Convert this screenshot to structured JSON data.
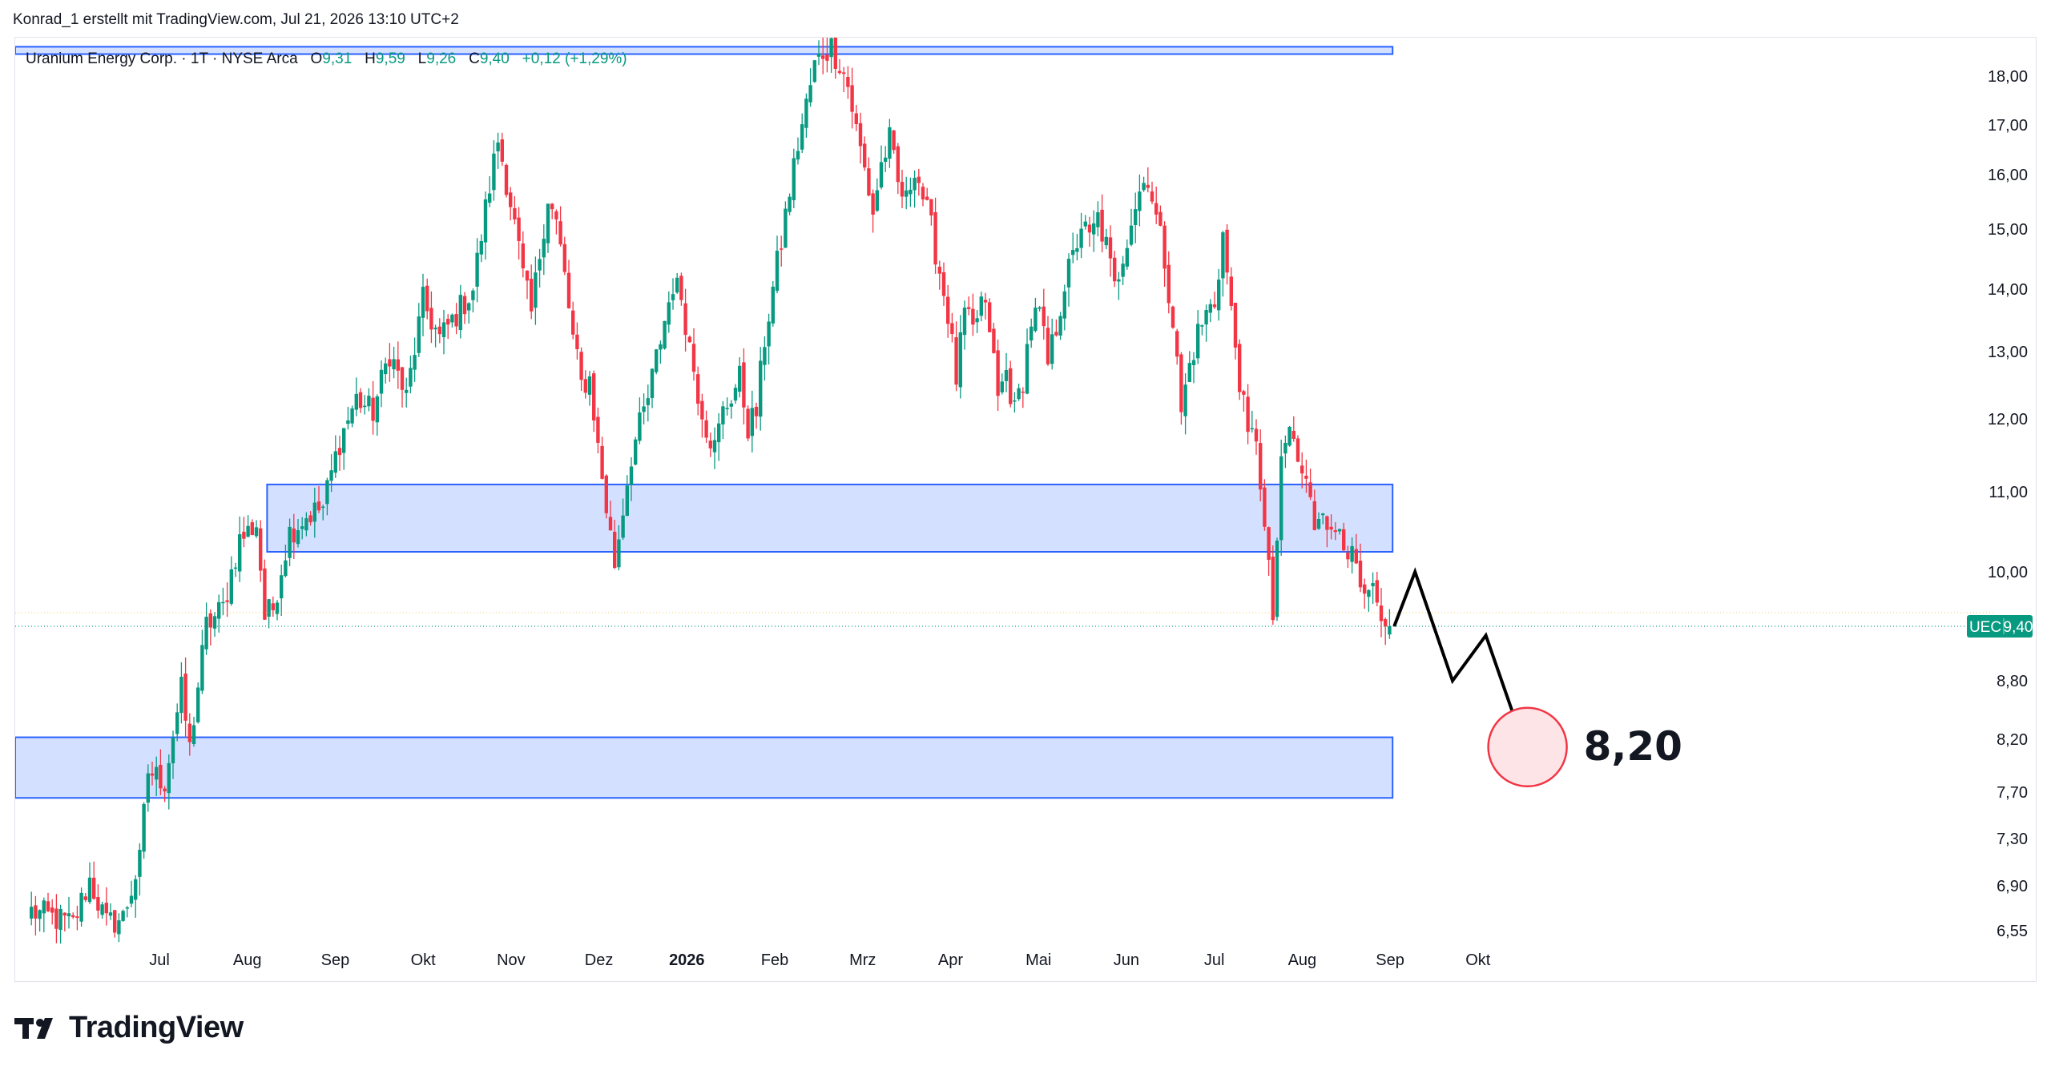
{
  "header": {
    "author_line": "Konrad_1 erstellt mit TradingView.com, Jul 21, 2026 13:10 UTC+2"
  },
  "legend": {
    "symbol": "Uranium Energy Corp. · 1T · NYSE Arca",
    "o_label": "O",
    "o_value": "9,31",
    "h_label": "H",
    "h_value": "9,59",
    "l_label": "L",
    "l_value": "9,26",
    "c_label": "C",
    "c_value": "9,40",
    "change": "+0,12 (+1,29%)"
  },
  "footer": {
    "brand": "TradingView"
  },
  "colors": {
    "up": "#089981",
    "down": "#f23645",
    "zone_fill": "#d4e0ff",
    "zone_stroke": "#2962ff",
    "target_circle": "#f23645",
    "projection": "#000000"
  },
  "chart_data": {
    "type": "candlestick",
    "symbol_badge": "UEC",
    "last_price": 9.4,
    "last_price_label": "9,40",
    "price_axis_ticks": [
      {
        "value": 18.0,
        "label": "18,00"
      },
      {
        "value": 17.0,
        "label": "17,00"
      },
      {
        "value": 16.0,
        "label": "16,00"
      },
      {
        "value": 15.0,
        "label": "15,00"
      },
      {
        "value": 14.0,
        "label": "14,00"
      },
      {
        "value": 13.0,
        "label": "13,00"
      },
      {
        "value": 12.0,
        "label": "12,00"
      },
      {
        "value": 11.0,
        "label": "11,00"
      },
      {
        "value": 10.0,
        "label": "10,00"
      },
      {
        "value": 8.8,
        "label": "8,80"
      },
      {
        "value": 8.2,
        "label": "8,20"
      },
      {
        "value": 7.7,
        "label": "7,70"
      },
      {
        "value": 7.3,
        "label": "7,30"
      },
      {
        "value": 6.9,
        "label": "6,90"
      },
      {
        "value": 6.55,
        "label": "6,55"
      }
    ],
    "time_axis": [
      {
        "label": "Jul",
        "bold": false
      },
      {
        "label": "Aug",
        "bold": false
      },
      {
        "label": "Sep",
        "bold": false
      },
      {
        "label": "Okt",
        "bold": false
      },
      {
        "label": "Nov",
        "bold": false
      },
      {
        "label": "Dez",
        "bold": false
      },
      {
        "label": "2026",
        "bold": true
      },
      {
        "label": "Feb",
        "bold": false
      },
      {
        "label": "Mrz",
        "bold": false
      },
      {
        "label": "Apr",
        "bold": false
      },
      {
        "label": "Mai",
        "bold": false
      },
      {
        "label": "Jun",
        "bold": false
      },
      {
        "label": "Jul",
        "bold": false
      },
      {
        "label": "Aug",
        "bold": false
      },
      {
        "label": "Sep",
        "bold": false
      },
      {
        "label": "Okt",
        "bold": false
      }
    ],
    "price_path": [
      [
        0,
        6.7
      ],
      [
        10,
        6.6
      ],
      [
        14,
        6.95
      ],
      [
        18,
        6.6
      ],
      [
        22,
        6.65
      ],
      [
        26,
        7.1
      ],
      [
        28,
        7.9
      ],
      [
        32,
        7.8
      ],
      [
        36,
        8.7
      ],
      [
        38,
        8.1
      ],
      [
        42,
        9.4
      ],
      [
        46,
        9.6
      ],
      [
        50,
        10.4
      ],
      [
        54,
        10.6
      ],
      [
        56,
        9.5
      ],
      [
        58,
        9.6
      ],
      [
        62,
        10.5
      ],
      [
        66,
        10.7
      ],
      [
        70,
        10.8
      ],
      [
        74,
        11.7
      ],
      [
        78,
        12.3
      ],
      [
        82,
        12.1
      ],
      [
        86,
        13.0
      ],
      [
        90,
        12.3
      ],
      [
        94,
        13.8
      ],
      [
        98,
        13.2
      ],
      [
        102,
        13.6
      ],
      [
        106,
        14.0
      ],
      [
        110,
        15.8
      ],
      [
        112,
        16.7
      ],
      [
        115,
        15.5
      ],
      [
        118,
        14.2
      ],
      [
        120,
        13.6
      ],
      [
        122,
        14.6
      ],
      [
        124,
        15.6
      ],
      [
        126,
        15.1
      ],
      [
        128,
        14.2
      ],
      [
        130,
        13.2
      ],
      [
        132,
        12.5
      ],
      [
        134,
        12.6
      ],
      [
        136,
        11.6
      ],
      [
        138,
        10.8
      ],
      [
        140,
        10.1
      ],
      [
        142,
        10.8
      ],
      [
        144,
        11.5
      ],
      [
        146,
        11.9
      ],
      [
        148,
        12.3
      ],
      [
        152,
        13.5
      ],
      [
        154,
        14.1
      ],
      [
        156,
        13.9
      ],
      [
        158,
        13.1
      ],
      [
        160,
        12.4
      ],
      [
        162,
        11.9
      ],
      [
        164,
        11.6
      ],
      [
        166,
        12.1
      ],
      [
        170,
        12.6
      ],
      [
        172,
        11.9
      ],
      [
        174,
        12.1
      ],
      [
        176,
        13.2
      ],
      [
        178,
        14.0
      ],
      [
        180,
        14.8
      ],
      [
        182,
        15.7
      ],
      [
        184,
        16.6
      ],
      [
        186,
        17.4
      ],
      [
        188,
        18.2
      ],
      [
        190,
        18.5
      ],
      [
        192,
        18.6
      ],
      [
        194,
        18.3
      ],
      [
        196,
        17.8
      ],
      [
        198,
        16.9
      ],
      [
        200,
        16.1
      ],
      [
        202,
        15.3
      ],
      [
        204,
        16.2
      ],
      [
        206,
        16.7
      ],
      [
        208,
        15.8
      ],
      [
        210,
        15.5
      ],
      [
        212,
        16.2
      ],
      [
        214,
        15.6
      ],
      [
        216,
        15.0
      ],
      [
        218,
        14.3
      ],
      [
        220,
        13.6
      ],
      [
        222,
        12.6
      ],
      [
        224,
        13.6
      ],
      [
        226,
        13.3
      ],
      [
        228,
        13.8
      ],
      [
        230,
        13.4
      ],
      [
        232,
        12.3
      ],
      [
        234,
        12.7
      ],
      [
        236,
        12.1
      ],
      [
        238,
        12.6
      ],
      [
        240,
        13.5
      ],
      [
        242,
        13.6
      ],
      [
        244,
        12.8
      ],
      [
        246,
        13.4
      ],
      [
        248,
        14.1
      ],
      [
        250,
        14.5
      ],
      [
        252,
        15.1
      ],
      [
        254,
        14.8
      ],
      [
        256,
        15.2
      ],
      [
        258,
        14.7
      ],
      [
        260,
        14.0
      ],
      [
        262,
        14.6
      ],
      [
        264,
        15.2
      ],
      [
        266,
        15.7
      ],
      [
        268,
        16.0
      ],
      [
        270,
        15.2
      ],
      [
        272,
        14.5
      ],
      [
        274,
        13.5
      ],
      [
        276,
        12.1
      ],
      [
        278,
        12.8
      ],
      [
        280,
        13.3
      ],
      [
        282,
        13.6
      ],
      [
        284,
        13.8
      ],
      [
        286,
        14.9
      ],
      [
        288,
        13.6
      ],
      [
        290,
        12.6
      ],
      [
        292,
        11.7
      ],
      [
        294,
        11.8
      ],
      [
        296,
        10.5
      ],
      [
        298,
        9.5
      ],
      [
        300,
        11.3
      ],
      [
        302,
        11.9
      ],
      [
        304,
        11.4
      ],
      [
        306,
        11.1
      ],
      [
        308,
        10.6
      ],
      [
        310,
        10.9
      ],
      [
        312,
        10.4
      ],
      [
        314,
        10.6
      ],
      [
        316,
        10.3
      ],
      [
        318,
        10.0
      ],
      [
        320,
        9.6
      ],
      [
        322,
        9.8
      ],
      [
        324,
        9.3
      ],
      [
        326,
        9.4
      ]
    ],
    "zones": [
      {
        "top": 18.6,
        "bottom": 18.45,
        "end": 326
      },
      {
        "top": 11.1,
        "bottom": 10.25,
        "start": 57,
        "end": 326
      },
      {
        "top": 8.22,
        "bottom": 7.65,
        "end": 326
      }
    ],
    "projection_path": [
      [
        326,
        9.4
      ],
      [
        331,
        10.0
      ],
      [
        340,
        8.8
      ],
      [
        348,
        9.3
      ],
      [
        358,
        8.05
      ]
    ],
    "target": {
      "value": 8.2,
      "label": "8,20"
    }
  }
}
